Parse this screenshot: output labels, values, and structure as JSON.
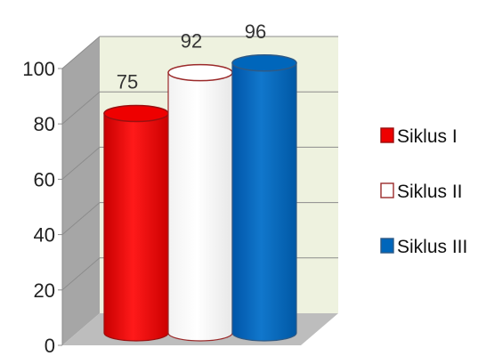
{
  "chart_data": {
    "type": "bar",
    "style": "3d-cylinder",
    "categories": [
      "Siklus I",
      "Siklus II",
      "Siklus III"
    ],
    "values": [
      75,
      92,
      96
    ],
    "ylim": [
      0,
      100
    ],
    "yticks": [
      "0",
      "20",
      "40",
      "60",
      "80",
      "100"
    ],
    "grid": true,
    "legend": "right",
    "title": "",
    "xlabel": "",
    "ylabel": "",
    "colors": {
      "Siklus I": "#ee0000",
      "Siklus II": "#ffffff",
      "Siklus III": "#0066bb"
    },
    "edge_colors": {
      "Siklus I": "#9a1010",
      "Siklus II": "#9b2a2a",
      "Siklus III": "#2f5a85"
    },
    "wall_color": "#eef2df",
    "side_wall_color": "#a6a6a6",
    "floor_color": "#bdbdbd"
  }
}
